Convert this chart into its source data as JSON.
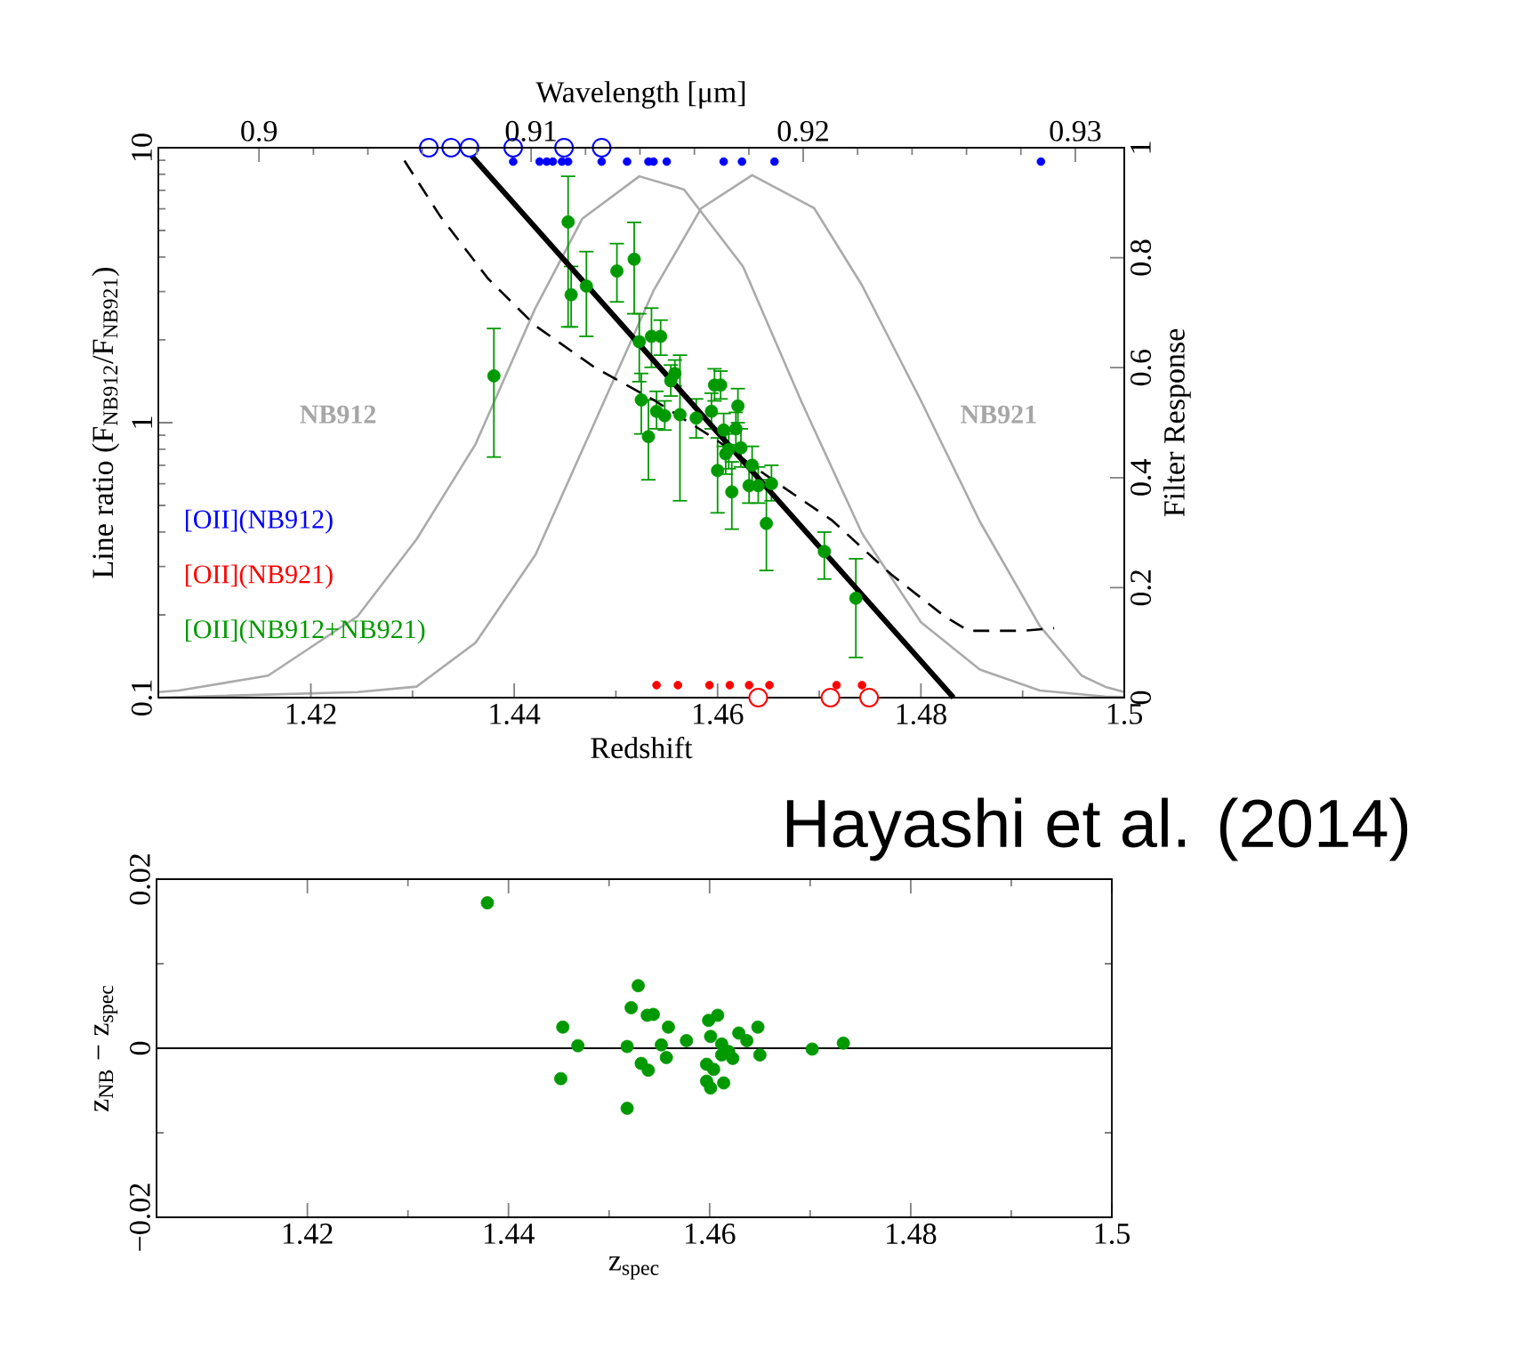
{
  "chart_data": [
    {
      "type": "scatter",
      "xlabel": "Redshift",
      "ylabel": "Line ratio (F$_{NB912}$/F$_{NB921}$)",
      "y2label": "Filter Response",
      "x2label": "Wavelength [μm]",
      "xlim": [
        1.405,
        1.5
      ],
      "xticks": [
        1.42,
        1.44,
        1.46,
        1.48,
        1.5
      ],
      "ylim": [
        0.1,
        10
      ],
      "yticks": [
        0.1,
        1,
        10
      ],
      "log": "y",
      "y2lim": [
        0,
        1
      ],
      "y2ticks": [
        0,
        0.2,
        0.4,
        0.6,
        0.8,
        1
      ],
      "x2lim": [
        0.8963,
        0.9318
      ],
      "x2ticks": [
        0.9,
        0.91,
        0.92,
        0.93
      ],
      "legend": "bottom left",
      "annotations": [
        "NB912",
        "NB921",
        "Hayashi et al. (2014)"
      ],
      "series": [
        {
          "name": "[OII](NB912)",
          "marker": "circle",
          "color": "#0000ff",
          "x": [
            1.4399,
            1.4425,
            1.4432,
            1.4438,
            1.4447,
            1.4453,
            1.4486,
            1.4511,
            1.4532,
            1.4537,
            1.455,
            1.4606,
            1.4624,
            1.4656,
            1.4918
          ],
          "values": [
            8.9,
            8.9,
            8.9,
            8.9,
            8.9,
            8.9,
            8.9,
            8.9,
            8.9,
            8.9,
            8.9,
            8.9,
            8.9,
            8.9,
            8.9
          ]
        },
        {
          "name": "[OII](NB921)",
          "marker": "circle",
          "color": "#ff0000",
          "x": [
            1.454,
            1.4561,
            1.4592,
            1.4612,
            1.4631,
            1.4651,
            1.4717,
            1.4742
          ],
          "values": [
            0.111,
            0.111,
            0.111,
            0.111,
            0.111,
            0.111,
            0.111,
            0.111
          ]
        },
        {
          "name": "[OII](NB912+NB921)",
          "marker": "circle",
          "color": "#009900",
          "x": [
            1.438,
            1.4453,
            1.4456,
            1.4471,
            1.4501,
            1.4518,
            1.4523,
            1.4535,
            1.4544,
            1.4525,
            1.4532,
            1.454,
            1.4554,
            1.4558,
            1.4563,
            1.4548,
            1.4579,
            1.4597,
            1.4603,
            1.4594,
            1.462,
            1.4606,
            1.4618,
            1.4608,
            1.4611,
            1.4623,
            1.46,
            1.4614,
            1.4634,
            1.4631,
            1.464,
            1.4653,
            1.4648,
            1.4705,
            1.4736
          ],
          "values": [
            1.48,
            5.37,
            2.92,
            3.14,
            3.56,
            3.93,
            1.97,
            2.06,
            2.06,
            1.21,
            0.89,
            1.1,
            1.42,
            1.51,
            1.07,
            1.06,
            1.04,
            1.37,
            1.37,
            1.1,
            1.15,
            0.94,
            0.95,
            0.77,
            0.8,
            0.81,
            0.67,
            0.56,
            0.7,
            0.59,
            0.59,
            0.6,
            0.43,
            0.34,
            0.23
          ],
          "errors": [
            [
              0.75,
              2.2
            ],
            [
              2.23,
              7.87
            ],
            [
              2.23,
              3.7
            ],
            [
              2.06,
              4.19
            ],
            [
              2.75,
              4.48
            ],
            [
              2.49,
              5.35
            ],
            [
              1.41,
              2.49
            ],
            [
              1.59,
              2.61
            ],
            [
              1.76,
              2.36
            ],
            [
              0.91,
              1.51
            ],
            [
              0.62,
              1.21
            ],
            [
              0.95,
              1.3
            ],
            [
              1.25,
              1.62
            ],
            [
              1.36,
              1.69
            ],
            [
              0.52,
              1.76
            ],
            [
              0.94,
              1.2
            ],
            [
              0.88,
              1.22
            ],
            [
              1.2,
              1.57
            ],
            [
              1.22,
              1.54
            ],
            [
              0.95,
              1.28
            ],
            [
              1.0,
              1.33
            ],
            [
              0.82,
              1.08
            ],
            [
              0.83,
              1.09
            ],
            [
              0.65,
              0.91
            ],
            [
              0.68,
              0.94
            ],
            [
              0.69,
              0.95
            ],
            [
              0.47,
              0.88
            ],
            [
              0.41,
              0.72
            ],
            [
              0.6,
              0.82
            ],
            [
              0.51,
              0.69
            ],
            [
              0.51,
              0.69
            ],
            [
              0.52,
              0.7
            ],
            [
              0.29,
              0.62
            ],
            [
              0.27,
              0.4
            ],
            [
              0.14,
              0.32
            ]
          ]
        },
        {
          "marker": "circle",
          "color": "#0000ff",
          "x": [
            1.4316,
            1.4338,
            1.4356,
            1.4399,
            1.4449,
            1.4486
          ],
          "values": [
            10,
            10,
            10,
            10,
            10,
            10
          ]
        },
        {
          "marker": "circle",
          "color": "#ff0000",
          "x": [
            1.464,
            1.4711,
            1.4749
          ],
          "values": [
            0.1,
            0.1,
            0.1
          ]
        },
        {
          "type": "line",
          "marker": "none",
          "color": "#000000",
          "line_style": "solid",
          "x": [
            1.4351,
            1.4832
          ],
          "values": [
            10,
            0.1
          ]
        },
        {
          "type": "line",
          "marker": "none",
          "color": "#000000",
          "line_style": "dashed",
          "x": [
            1.4292,
            1.4327,
            1.4374,
            1.4421,
            1.4479,
            1.4537,
            1.4596,
            1.4654,
            1.4713,
            1.4771,
            1.4823,
            1.4847,
            1.4899,
            1.4931
          ],
          "values": [
            8.97,
            5.65,
            3.35,
            2.25,
            1.59,
            1.21,
            0.88,
            0.62,
            0.44,
            0.28,
            0.198,
            0.175,
            0.175,
            0.179
          ]
        },
        {
          "type": "line",
          "marker": "none",
          "axis": "y2",
          "color": "#aaaaaa",
          "line_style": "solid",
          "x": [
            1.405,
            1.407,
            1.4158,
            1.4246,
            1.4304,
            1.4362,
            1.4421,
            1.4467,
            1.4523,
            1.4567,
            1.4625,
            1.4683,
            1.4742,
            1.48,
            1.4858,
            1.4917,
            1.4981,
            1.5
          ],
          "values": [
            0.01,
            0.013,
            0.04,
            0.148,
            0.288,
            0.461,
            0.709,
            0.871,
            0.948,
            0.924,
            0.784,
            0.536,
            0.299,
            0.137,
            0.051,
            0.013,
            0.002,
            0.001
          ]
        },
        {
          "type": "line",
          "marker": "none",
          "axis": "y2",
          "color": "#aaaaaa",
          "line_style": "solid",
          "x": [
            1.405,
            1.4246,
            1.4304,
            1.4362,
            1.4421,
            1.4479,
            1.4537,
            1.4584,
            1.4634,
            1.4695,
            1.4742,
            1.48,
            1.4858,
            1.4917,
            1.4958,
            1.4981,
            1.5
          ],
          "values": [
            0,
            0.01,
            0.02,
            0.1,
            0.26,
            0.5,
            0.74,
            0.89,
            0.95,
            0.89,
            0.75,
            0.54,
            0.32,
            0.13,
            0.04,
            0.02,
            0.01
          ]
        }
      ]
    },
    {
      "type": "scatter",
      "xlabel": "z$_{spec}$",
      "ylabel": "z$_{NB}$ − z$_{spec}$",
      "xlim": [
        1.405,
        1.5
      ],
      "xticks": [
        1.42,
        1.44,
        1.46,
        1.48,
        1.5
      ],
      "ylim": [
        -0.02,
        0.02
      ],
      "yticks": [
        {
          "value": -0.02,
          "label": "−0.02"
        },
        0,
        0.02
      ],
      "ref_lines": [
        {
          "axis": "y",
          "value": 0
        }
      ],
      "series": [
        {
          "marker": "circle",
          "color": "#009900",
          "x": [
            1.4379,
            1.4529,
            1.4522,
            1.4538,
            1.4544,
            1.4559,
            1.4454,
            1.4469,
            1.4518,
            1.4552,
            1.4577,
            1.4557,
            1.4532,
            1.4539,
            1.4452,
            1.4518,
            1.4599,
            1.4608,
            1.4601,
            1.4612,
            1.4629,
            1.4637,
            1.4648,
            1.465,
            1.4623,
            1.4597,
            1.4604,
            1.4597,
            1.4614,
            1.4601,
            1.4612,
            1.4702,
            1.4733,
            1.4619
          ],
          "values": [
            0.0172,
            0.0074,
            0.0048,
            0.0039,
            0.004,
            0.0025,
            0.0025,
            0.0003,
            0.0002,
            0.0004,
            0.0009,
            -0.0011,
            -0.0018,
            -0.0026,
            -0.0036,
            -0.0071,
            0.0033,
            0.0039,
            0.0014,
            0.0005,
            0.0018,
            0.0009,
            0.0025,
            -0.0008,
            -0.0012,
            -0.0019,
            -0.0025,
            -0.0039,
            -0.0041,
            -0.0047,
            -0.0008,
            -0.0001,
            0.0006,
            -0.0004
          ]
        }
      ]
    }
  ]
}
